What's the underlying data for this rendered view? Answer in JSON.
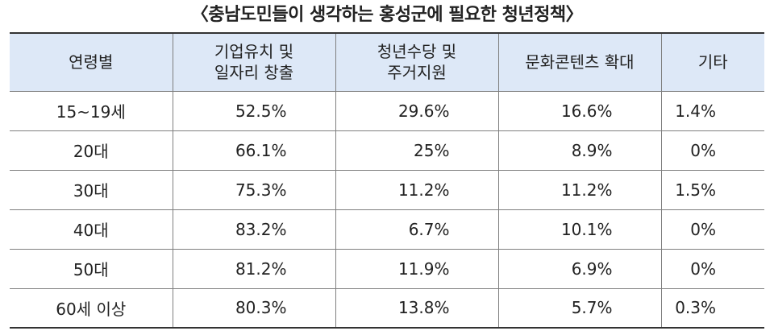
{
  "title": "〈충남도민들이 생각하는 홍성군에 필요한 청년정책〉",
  "chart_data": {
    "type": "table",
    "title": "〈충남도민들이 생각하는 홍성군에 필요한 청년정책〉",
    "columns": [
      {
        "lines": [
          "연령별"
        ]
      },
      {
        "lines": [
          "기업유치 및",
          "일자리 창출"
        ]
      },
      {
        "lines": [
          "청년수당 및",
          "주거지원"
        ]
      },
      {
        "lines": [
          "문화콘텐츠 확대"
        ]
      },
      {
        "lines": [
          "기타"
        ]
      }
    ],
    "rows": [
      {
        "age": "15~19세",
        "values": [
          "52.5%",
          "29.6%",
          "16.6%",
          "1.4%"
        ]
      },
      {
        "age": "20대",
        "values": [
          "66.1%",
          "25%",
          "8.9%",
          "0%"
        ]
      },
      {
        "age": "30대",
        "values": [
          "75.3%",
          "11.2%",
          "11.2%",
          "1.5%"
        ]
      },
      {
        "age": "40대",
        "values": [
          "83.2%",
          "6.7%",
          "10.1%",
          "0%"
        ]
      },
      {
        "age": "50대",
        "values": [
          "81.2%",
          "11.9%",
          "6.9%",
          "0%"
        ]
      },
      {
        "age": "60세 이상",
        "values": [
          "80.3%",
          "13.8%",
          "5.7%",
          "0.3%"
        ]
      }
    ]
  }
}
